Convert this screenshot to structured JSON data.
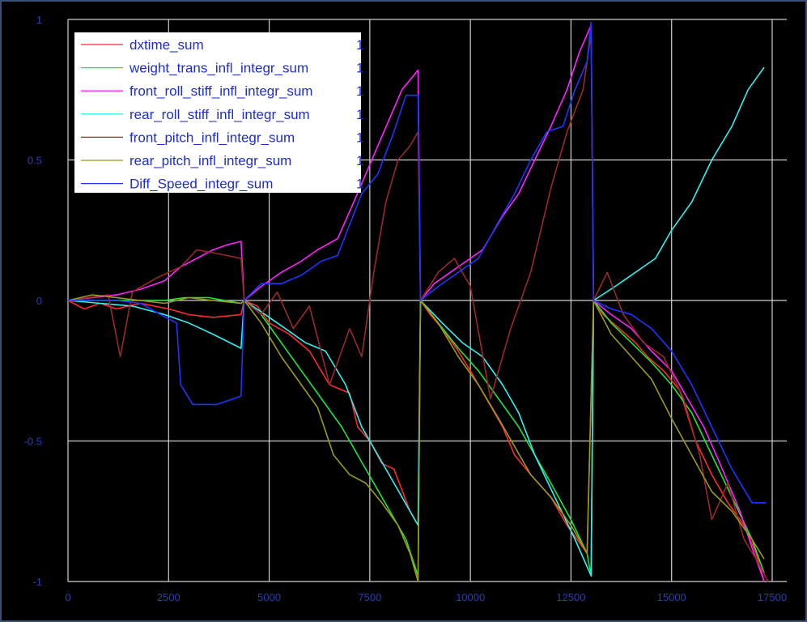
{
  "chart_data": {
    "type": "line",
    "xlim": [
      0,
      17500
    ],
    "ylim": [
      -1,
      1
    ],
    "x_ticks": [
      "0",
      "2500",
      "5000",
      "7500",
      "10000",
      "12500",
      "15000",
      "17500"
    ],
    "x_tick_values": [
      0,
      2500,
      5000,
      7500,
      10000,
      12500,
      15000,
      17500
    ],
    "y_ticks": [
      "1",
      "0.5",
      "0",
      "-0.5",
      "-1"
    ],
    "y_tick_values": [
      1,
      0.5,
      0,
      -0.5,
      -1
    ],
    "grid": true,
    "legend_position": "top-left",
    "series": [
      {
        "name": "dxtime_sum",
        "legend_value": "1",
        "color": "#ff2a2a",
        "points": [
          [
            0,
            0
          ],
          [
            400,
            -0.03
          ],
          [
            800,
            -0.01
          ],
          [
            1200,
            -0.03
          ],
          [
            1800,
            -0.01
          ],
          [
            2500,
            -0.03
          ],
          [
            3000,
            -0.05
          ],
          [
            3600,
            -0.06
          ],
          [
            4300,
            -0.05
          ],
          [
            4380,
            0
          ],
          [
            4700,
            -0.02
          ],
          [
            5000,
            -0.08
          ],
          [
            5500,
            -0.12
          ],
          [
            6000,
            -0.18
          ],
          [
            6500,
            -0.3
          ],
          [
            7000,
            -0.33
          ],
          [
            7200,
            -0.45
          ],
          [
            7500,
            -0.5
          ],
          [
            7800,
            -0.58
          ],
          [
            8100,
            -0.6
          ],
          [
            8500,
            -0.75
          ],
          [
            8700,
            -0.8
          ],
          [
            8760,
            0
          ],
          [
            9000,
            -0.05
          ],
          [
            9300,
            -0.1
          ],
          [
            9700,
            -0.18
          ],
          [
            10000,
            -0.25
          ],
          [
            10400,
            -0.35
          ],
          [
            10800,
            -0.45
          ],
          [
            11100,
            -0.55
          ],
          [
            11500,
            -0.62
          ],
          [
            12000,
            -0.7
          ],
          [
            12400,
            -0.8
          ],
          [
            12900,
            -0.9
          ],
          [
            13060,
            0
          ],
          [
            13300,
            -0.05
          ],
          [
            13700,
            -0.1
          ],
          [
            14100,
            -0.15
          ],
          [
            14400,
            -0.2
          ],
          [
            14800,
            -0.25
          ],
          [
            15200,
            -0.32
          ],
          [
            15600,
            -0.5
          ],
          [
            16000,
            -0.62
          ],
          [
            16400,
            -0.72
          ],
          [
            16800,
            -0.8
          ],
          [
            17100,
            -0.9
          ],
          [
            17300,
            -1.0
          ]
        ]
      },
      {
        "name": "weight_trans_infl_integr_sum",
        "legend_value": "1",
        "color": "#22e43a",
        "points": [
          [
            0,
            0
          ],
          [
            800,
            0
          ],
          [
            1600,
            0
          ],
          [
            2400,
            0
          ],
          [
            2900,
            0.01
          ],
          [
            3500,
            0.01
          ],
          [
            4300,
            -0.01
          ],
          [
            4380,
            0
          ],
          [
            4800,
            -0.05
          ],
          [
            5300,
            -0.15
          ],
          [
            5800,
            -0.25
          ],
          [
            6300,
            -0.35
          ],
          [
            6800,
            -0.45
          ],
          [
            7200,
            -0.55
          ],
          [
            7600,
            -0.65
          ],
          [
            8000,
            -0.75
          ],
          [
            8400,
            -0.85
          ],
          [
            8700,
            -0.98
          ],
          [
            8760,
            0
          ],
          [
            9200,
            -0.08
          ],
          [
            9700,
            -0.17
          ],
          [
            10200,
            -0.25
          ],
          [
            10700,
            -0.35
          ],
          [
            11200,
            -0.45
          ],
          [
            11600,
            -0.55
          ],
          [
            12000,
            -0.65
          ],
          [
            12500,
            -0.78
          ],
          [
            12900,
            -0.9
          ],
          [
            13000,
            -0.98
          ],
          [
            13060,
            0
          ],
          [
            13500,
            -0.08
          ],
          [
            14000,
            -0.15
          ],
          [
            14500,
            -0.22
          ],
          [
            15000,
            -0.3
          ],
          [
            15500,
            -0.4
          ],
          [
            16000,
            -0.55
          ],
          [
            16500,
            -0.7
          ],
          [
            17000,
            -0.85
          ],
          [
            17300,
            -0.97
          ]
        ]
      },
      {
        "name": "front_roll_stiff_infl_integr_sum",
        "legend_value": "1",
        "color": "#ff22ff",
        "points": [
          [
            0,
            0
          ],
          [
            600,
            0.01
          ],
          [
            1200,
            0.02
          ],
          [
            1800,
            0.04
          ],
          [
            2400,
            0.07
          ],
          [
            2800,
            0.12
          ],
          [
            3200,
            0.15
          ],
          [
            3600,
            0.18
          ],
          [
            4000,
            0.2
          ],
          [
            4300,
            0.21
          ],
          [
            4380,
            0
          ],
          [
            4800,
            0.05
          ],
          [
            5300,
            0.1
          ],
          [
            5800,
            0.14
          ],
          [
            6200,
            0.18
          ],
          [
            6700,
            0.22
          ],
          [
            7100,
            0.35
          ],
          [
            7400,
            0.45
          ],
          [
            7700,
            0.55
          ],
          [
            8000,
            0.65
          ],
          [
            8300,
            0.75
          ],
          [
            8700,
            0.82
          ],
          [
            8760,
            0
          ],
          [
            9100,
            0.06
          ],
          [
            9500,
            0.1
          ],
          [
            9900,
            0.14
          ],
          [
            10300,
            0.18
          ],
          [
            10800,
            0.3
          ],
          [
            11200,
            0.38
          ],
          [
            11600,
            0.5
          ],
          [
            12000,
            0.62
          ],
          [
            12400,
            0.75
          ],
          [
            12700,
            0.88
          ],
          [
            13000,
            0.98
          ],
          [
            13060,
            0
          ],
          [
            13500,
            -0.05
          ],
          [
            14000,
            -0.1
          ],
          [
            14500,
            -0.18
          ],
          [
            15000,
            -0.25
          ],
          [
            15400,
            -0.35
          ],
          [
            15800,
            -0.45
          ],
          [
            16200,
            -0.58
          ],
          [
            16700,
            -0.75
          ],
          [
            17000,
            -0.88
          ],
          [
            17300,
            -1.0
          ]
        ]
      },
      {
        "name": "rear_roll_stiff_infl_integr_sum",
        "legend_value": "1",
        "color": "#33f0f0",
        "points": [
          [
            0,
            0
          ],
          [
            800,
            -0.01
          ],
          [
            1600,
            -0.02
          ],
          [
            2400,
            -0.05
          ],
          [
            3000,
            -0.08
          ],
          [
            3600,
            -0.12
          ],
          [
            4300,
            -0.17
          ],
          [
            4380,
            0
          ],
          [
            4900,
            -0.05
          ],
          [
            5400,
            -0.1
          ],
          [
            5900,
            -0.15
          ],
          [
            6400,
            -0.18
          ],
          [
            6900,
            -0.3
          ],
          [
            7300,
            -0.45
          ],
          [
            7700,
            -0.55
          ],
          [
            8100,
            -0.65
          ],
          [
            8500,
            -0.75
          ],
          [
            8700,
            -0.8
          ],
          [
            8760,
            0
          ],
          [
            9300,
            -0.08
          ],
          [
            9800,
            -0.15
          ],
          [
            10300,
            -0.2
          ],
          [
            10800,
            -0.3
          ],
          [
            11200,
            -0.4
          ],
          [
            11600,
            -0.55
          ],
          [
            12100,
            -0.7
          ],
          [
            12600,
            -0.85
          ],
          [
            13000,
            -0.98
          ],
          [
            13060,
            0
          ],
          [
            13600,
            0.05
          ],
          [
            14100,
            0.1
          ],
          [
            14600,
            0.15
          ],
          [
            15000,
            0.25
          ],
          [
            15500,
            0.35
          ],
          [
            16000,
            0.5
          ],
          [
            16500,
            0.62
          ],
          [
            16900,
            0.75
          ],
          [
            17300,
            0.83
          ]
        ]
      },
      {
        "name": "front_pitch_infl_integr_sum",
        "legend_value": "1",
        "color": "#9a2a2a",
        "points": [
          [
            0,
            0
          ],
          [
            500,
            0.01
          ],
          [
            1000,
            0.02
          ],
          [
            1300,
            -0.2
          ],
          [
            1600,
            0.03
          ],
          [
            2200,
            0.08
          ],
          [
            2800,
            0.12
          ],
          [
            3200,
            0.18
          ],
          [
            3600,
            0.17
          ],
          [
            4300,
            0.15
          ],
          [
            4380,
            0
          ],
          [
            4800,
            -0.05
          ],
          [
            5200,
            0.03
          ],
          [
            5600,
            -0.1
          ],
          [
            6000,
            -0.02
          ],
          [
            6500,
            -0.3
          ],
          [
            7000,
            -0.1
          ],
          [
            7300,
            -0.2
          ],
          [
            7600,
            0.1
          ],
          [
            7900,
            0.35
          ],
          [
            8200,
            0.5
          ],
          [
            8500,
            0.55
          ],
          [
            8700,
            0.6
          ],
          [
            8760,
            0
          ],
          [
            9200,
            0.1
          ],
          [
            9600,
            0.15
          ],
          [
            10000,
            0.05
          ],
          [
            10500,
            -0.35
          ],
          [
            11000,
            -0.1
          ],
          [
            11500,
            0.1
          ],
          [
            12000,
            0.4
          ],
          [
            12400,
            0.6
          ],
          [
            12800,
            0.75
          ],
          [
            13000,
            0.95
          ],
          [
            13060,
            0
          ],
          [
            13400,
            0.1
          ],
          [
            13800,
            -0.05
          ],
          [
            14300,
            -0.15
          ],
          [
            14800,
            -0.2
          ],
          [
            15300,
            -0.35
          ],
          [
            15700,
            -0.55
          ],
          [
            16000,
            -0.78
          ],
          [
            16400,
            -0.65
          ],
          [
            16800,
            -0.85
          ],
          [
            17100,
            -0.92
          ],
          [
            17400,
            -1.0
          ]
        ]
      },
      {
        "name": "rear_pitch_infl_integr_sum",
        "legend_value": "1",
        "color": "#9a9a22",
        "points": [
          [
            0,
            0
          ],
          [
            600,
            0.02
          ],
          [
            1200,
            0.01
          ],
          [
            1800,
            0.0
          ],
          [
            2400,
            -0.01
          ],
          [
            3000,
            0.01
          ],
          [
            3600,
            0.0
          ],
          [
            4300,
            -0.01
          ],
          [
            4380,
            0
          ],
          [
            4800,
            -0.08
          ],
          [
            5300,
            -0.2
          ],
          [
            5800,
            -0.3
          ],
          [
            6200,
            -0.38
          ],
          [
            6600,
            -0.55
          ],
          [
            7000,
            -0.62
          ],
          [
            7400,
            -0.65
          ],
          [
            7800,
            -0.72
          ],
          [
            8200,
            -0.8
          ],
          [
            8500,
            -0.9
          ],
          [
            8700,
            -1.0
          ],
          [
            8760,
            0
          ],
          [
            9200,
            -0.08
          ],
          [
            9700,
            -0.2
          ],
          [
            10200,
            -0.3
          ],
          [
            10700,
            -0.42
          ],
          [
            11100,
            -0.52
          ],
          [
            11500,
            -0.62
          ],
          [
            12000,
            -0.7
          ],
          [
            12500,
            -0.8
          ],
          [
            12900,
            -0.9
          ],
          [
            13060,
            0
          ],
          [
            13500,
            -0.12
          ],
          [
            14000,
            -0.2
          ],
          [
            14500,
            -0.28
          ],
          [
            15000,
            -0.42
          ],
          [
            15500,
            -0.55
          ],
          [
            16000,
            -0.68
          ],
          [
            16500,
            -0.75
          ],
          [
            17000,
            -0.85
          ],
          [
            17300,
            -0.92
          ]
        ]
      },
      {
        "name": "Diff_Speed_integr_sum",
        "legend_value": "1",
        "color": "#1f35ff",
        "points": [
          [
            0,
            0
          ],
          [
            500,
            0
          ],
          [
            1200,
            0
          ],
          [
            1800,
            -0.01
          ],
          [
            2300,
            -0.05
          ],
          [
            2700,
            -0.08
          ],
          [
            2800,
            -0.3
          ],
          [
            3100,
            -0.37
          ],
          [
            3700,
            -0.37
          ],
          [
            4300,
            -0.34
          ],
          [
            4380,
            0
          ],
          [
            4800,
            0.06
          ],
          [
            5300,
            0.06
          ],
          [
            5800,
            0.09
          ],
          [
            6300,
            0.14
          ],
          [
            6700,
            0.16
          ],
          [
            7000,
            0.27
          ],
          [
            7300,
            0.38
          ],
          [
            7700,
            0.45
          ],
          [
            8100,
            0.6
          ],
          [
            8400,
            0.73
          ],
          [
            8700,
            0.73
          ],
          [
            8760,
            0
          ],
          [
            9200,
            0.05
          ],
          [
            9700,
            0.1
          ],
          [
            10200,
            0.15
          ],
          [
            10700,
            0.28
          ],
          [
            11100,
            0.38
          ],
          [
            11500,
            0.5
          ],
          [
            11900,
            0.6
          ],
          [
            12300,
            0.62
          ],
          [
            12600,
            0.75
          ],
          [
            12900,
            0.85
          ],
          [
            13000,
            0.99
          ],
          [
            13060,
            0
          ],
          [
            13500,
            -0.03
          ],
          [
            14000,
            -0.05
          ],
          [
            14500,
            -0.1
          ],
          [
            15000,
            -0.18
          ],
          [
            15500,
            -0.3
          ],
          [
            16000,
            -0.45
          ],
          [
            16500,
            -0.6
          ],
          [
            17000,
            -0.72
          ],
          [
            17350,
            -0.72
          ]
        ]
      }
    ]
  }
}
